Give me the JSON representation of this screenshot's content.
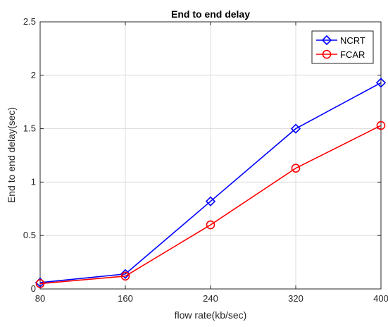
{
  "chart_data": {
    "type": "line",
    "title": "End to end delay",
    "xlabel": "flow rate(kb/sec)",
    "ylabel": "End to end delay(sec)",
    "x": [
      80,
      160,
      240,
      320,
      400
    ],
    "xticks": [
      "80",
      "160",
      "240",
      "320",
      "400"
    ],
    "yticks": [
      "0",
      "0.5",
      "1",
      "1.5",
      "2",
      "2.5"
    ],
    "xlim": [
      80,
      400
    ],
    "ylim": [
      0,
      2.5
    ],
    "grid": true,
    "legend_position": "top-right",
    "series": [
      {
        "name": "NCRT",
        "values": [
          0.06,
          0.14,
          0.82,
          1.5,
          1.93
        ],
        "color": "#0000ff",
        "marker": "diamond"
      },
      {
        "name": "FCAR",
        "values": [
          0.05,
          0.12,
          0.6,
          1.13,
          1.53
        ],
        "color": "#ff0000",
        "marker": "circle"
      }
    ]
  }
}
